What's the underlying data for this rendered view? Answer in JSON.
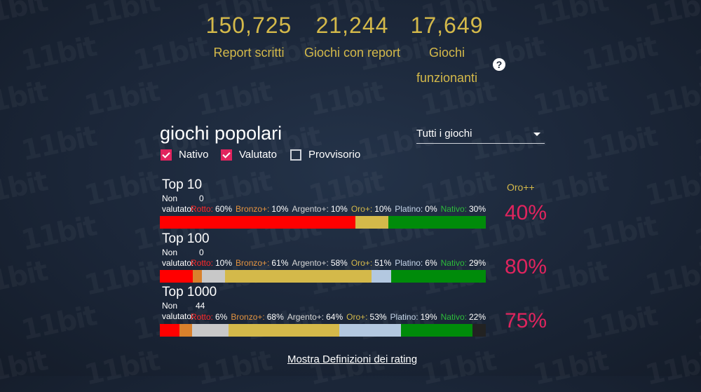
{
  "stats": [
    {
      "value": "150,725",
      "label": "Report scritti"
    },
    {
      "value": "21,244",
      "label": "Giochi con report"
    },
    {
      "value": "17,649",
      "label": "Giochi funzionanti"
    }
  ],
  "help_icon": "?",
  "title": "giochi popolari",
  "filter_select": {
    "value": "Tutti i giochi"
  },
  "filters": [
    {
      "label": "Nativo",
      "checked": true
    },
    {
      "label": "Valutato",
      "checked": true
    },
    {
      "label": "Provvisorio",
      "checked": false
    }
  ],
  "oro_label": "Oro++",
  "non_valutato_label": "Non valutato:",
  "colors": {
    "rotto": "#ff0000",
    "bronzo": "#d9812c",
    "argento": "#c8c8c8",
    "oro": "#d4b94a",
    "platino": "#b3c8e0",
    "nativo": "#008b0a",
    "non_valutato": "#222222",
    "accent": "#e0245e"
  },
  "sections": [
    {
      "title": "Top 10",
      "non_valutato": "0",
      "breakdown": [
        {
          "label": "Rotto:",
          "value": "60%",
          "color": "#ff2a2a"
        },
        {
          "label": "Bronzo+:",
          "value": "10%",
          "color": "#e39340"
        },
        {
          "label": "Argento+:",
          "value": "10%",
          "color": "#d6d6d6"
        },
        {
          "label": "Oro+:",
          "value": "10%",
          "color": "#d4b94a"
        },
        {
          "label": "Platino:",
          "value": "0%",
          "color": "#c6d6ea"
        },
        {
          "label": "Nativo:",
          "value": "30%",
          "color": "#2dbd3a"
        }
      ],
      "segments": [
        60,
        0,
        0,
        10,
        0,
        30,
        0
      ],
      "percent": "40%"
    },
    {
      "title": "Top 100",
      "non_valutato": "0",
      "breakdown": [
        {
          "label": "Rotto:",
          "value": "10%",
          "color": "#ff2a2a"
        },
        {
          "label": "Bronzo+:",
          "value": "61%",
          "color": "#e39340"
        },
        {
          "label": "Argento+:",
          "value": "58%",
          "color": "#d6d6d6"
        },
        {
          "label": "Oro+:",
          "value": "51%",
          "color": "#d4b94a"
        },
        {
          "label": "Platino:",
          "value": "6%",
          "color": "#c6d6ea"
        },
        {
          "label": "Nativo:",
          "value": "29%",
          "color": "#2dbd3a"
        }
      ],
      "segments": [
        10,
        3,
        7,
        45,
        6,
        29,
        0
      ],
      "percent": "80%"
    },
    {
      "title": "Top 1000",
      "non_valutato": "44",
      "breakdown": [
        {
          "label": "Rotto:",
          "value": "6%",
          "color": "#ff2a2a"
        },
        {
          "label": "Bronzo+:",
          "value": "68%",
          "color": "#e39340"
        },
        {
          "label": "Argento+:",
          "value": "64%",
          "color": "#d6d6d6"
        },
        {
          "label": "Oro+:",
          "value": "53%",
          "color": "#d4b94a"
        },
        {
          "label": "Platino:",
          "value": "19%",
          "color": "#c6d6ea"
        },
        {
          "label": "Nativo:",
          "value": "22%",
          "color": "#2dbd3a"
        }
      ],
      "segments": [
        6,
        4,
        11,
        34,
        19,
        22,
        4
      ],
      "percent": "75%"
    }
  ],
  "definitions_link": "Mostra Definizioni dei rating"
}
